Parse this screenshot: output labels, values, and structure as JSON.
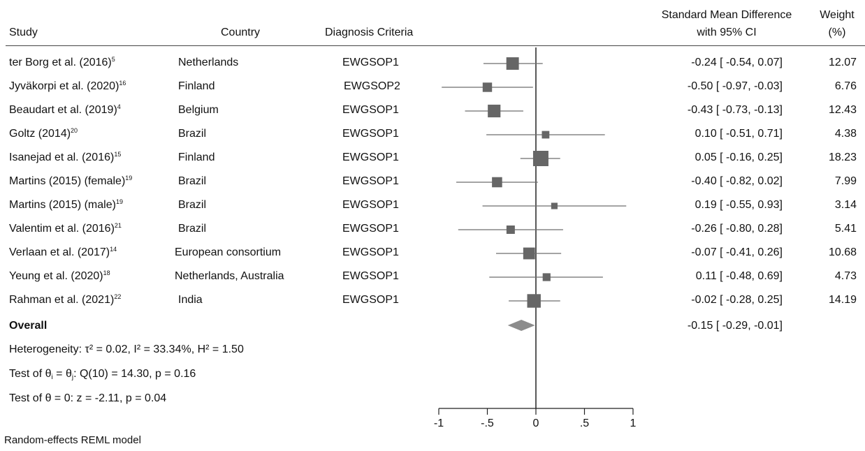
{
  "headers": {
    "study": "Study",
    "country": "Country",
    "criteria": "Diagnosis Criteria",
    "smd_line1": "Standard Mean Difference",
    "smd_line2": "with 95% CI",
    "weight_line1": "Weight",
    "weight_line2": "(%)"
  },
  "overall": {
    "label": "Overall",
    "ci_text": "-0.15 [ -0.29,  -0.01]"
  },
  "stats": {
    "heterogeneity": "Heterogeneity: τ² = 0.02, I² = 33.34%, H² = 1.50",
    "test_theta_prefix": "Test of θ",
    "test_theta_rest": ": Q(10) = 14.30, p = 0.16",
    "test_zero": "Test of θ = 0: z = -2.11, p = 0.04"
  },
  "footer": "Random-effects REML model",
  "colors": {
    "marker": "#666666",
    "line": "#6e6e6e",
    "axis": "#222222",
    "diamond": "#8c8c8c"
  },
  "chart_data": {
    "type": "scatter",
    "subtype": "forest-plot",
    "xlim": [
      -1,
      1
    ],
    "x_ticks": [
      -1,
      -0.5,
      0,
      0.5,
      1
    ],
    "x_tick_labels": [
      "-1",
      "-.5",
      "0",
      ".5",
      "1"
    ],
    "reference_line": 0,
    "studies": [
      {
        "name": "ter Borg et al. (2016)",
        "ref": "5",
        "country": "Netherlands",
        "criteria": "EWGSOP1",
        "smd": -0.24,
        "lo": -0.54,
        "hi": 0.07,
        "ci_text": "-0.24 [ -0.54,   0.07]",
        "weight": "12.07"
      },
      {
        "name": "Jyväkorpi et al. (2020)",
        "ref": "16",
        "country": "Finland",
        "criteria": "EWGSOP2",
        "smd": -0.5,
        "lo": -0.97,
        "hi": -0.03,
        "ci_text": "-0.50 [ -0.97,  -0.03]",
        "weight": "6.76"
      },
      {
        "name": "Beaudart et al. (2019)",
        "ref": "4",
        "country": "Belgium",
        "criteria": "EWGSOP1",
        "smd": -0.43,
        "lo": -0.73,
        "hi": -0.13,
        "ci_text": "-0.43 [ -0.73,  -0.13]",
        "weight": "12.43"
      },
      {
        "name": "Goltz (2014)",
        "ref": "20",
        "country": "Brazil",
        "criteria": "EWGSOP1",
        "smd": 0.1,
        "lo": -0.51,
        "hi": 0.71,
        "ci_text": "0.10 [ -0.51,   0.71]",
        "weight": "4.38"
      },
      {
        "name": "Isanejad et al. (2016)",
        "ref": "15",
        "country": "Finland",
        "criteria": "EWGSOP1",
        "smd": 0.05,
        "lo": -0.16,
        "hi": 0.25,
        "ci_text": "0.05 [ -0.16,   0.25]",
        "weight": "18.23"
      },
      {
        "name": "Martins (2015) (female)",
        "ref": "19",
        "country": "Brazil",
        "criteria": "EWGSOP1",
        "smd": -0.4,
        "lo": -0.82,
        "hi": 0.02,
        "ci_text": "-0.40 [ -0.82,   0.02]",
        "weight": "7.99"
      },
      {
        "name": "Martins (2015) (male)",
        "ref": "19",
        "country": "Brazil",
        "criteria": "EWGSOP1",
        "smd": 0.19,
        "lo": -0.55,
        "hi": 0.93,
        "ci_text": "0.19 [ -0.55,   0.93]",
        "weight": "3.14"
      },
      {
        "name": "Valentim et al. (2016)",
        "ref": "21",
        "country": "Brazil",
        "criteria": "EWGSOP1",
        "smd": -0.26,
        "lo": -0.8,
        "hi": 0.28,
        "ci_text": "-0.26 [ -0.80,   0.28]",
        "weight": "5.41"
      },
      {
        "name": "Verlaan et al. (2017)",
        "ref": "14",
        "country": "European consortium",
        "criteria": "EWGSOP1",
        "smd": -0.07,
        "lo": -0.41,
        "hi": 0.26,
        "ci_text": "-0.07 [ -0.41,   0.26]",
        "weight": "10.68"
      },
      {
        "name": "Yeung et al. (2020)",
        "ref": "18",
        "country": "Netherlands, Australia",
        "criteria": "EWGSOP1",
        "smd": 0.11,
        "lo": -0.48,
        "hi": 0.69,
        "ci_text": "0.11 [ -0.48,   0.69]",
        "weight": "4.73"
      },
      {
        "name": "Rahman et al. (2021)",
        "ref": "22",
        "country": "India",
        "criteria": "EWGSOP1",
        "smd": -0.02,
        "lo": -0.28,
        "hi": 0.25,
        "ci_text": "-0.02 [ -0.28,   0.25]",
        "weight": "14.19"
      }
    ],
    "overall": {
      "smd": -0.15,
      "lo": -0.29,
      "hi": -0.01
    }
  }
}
